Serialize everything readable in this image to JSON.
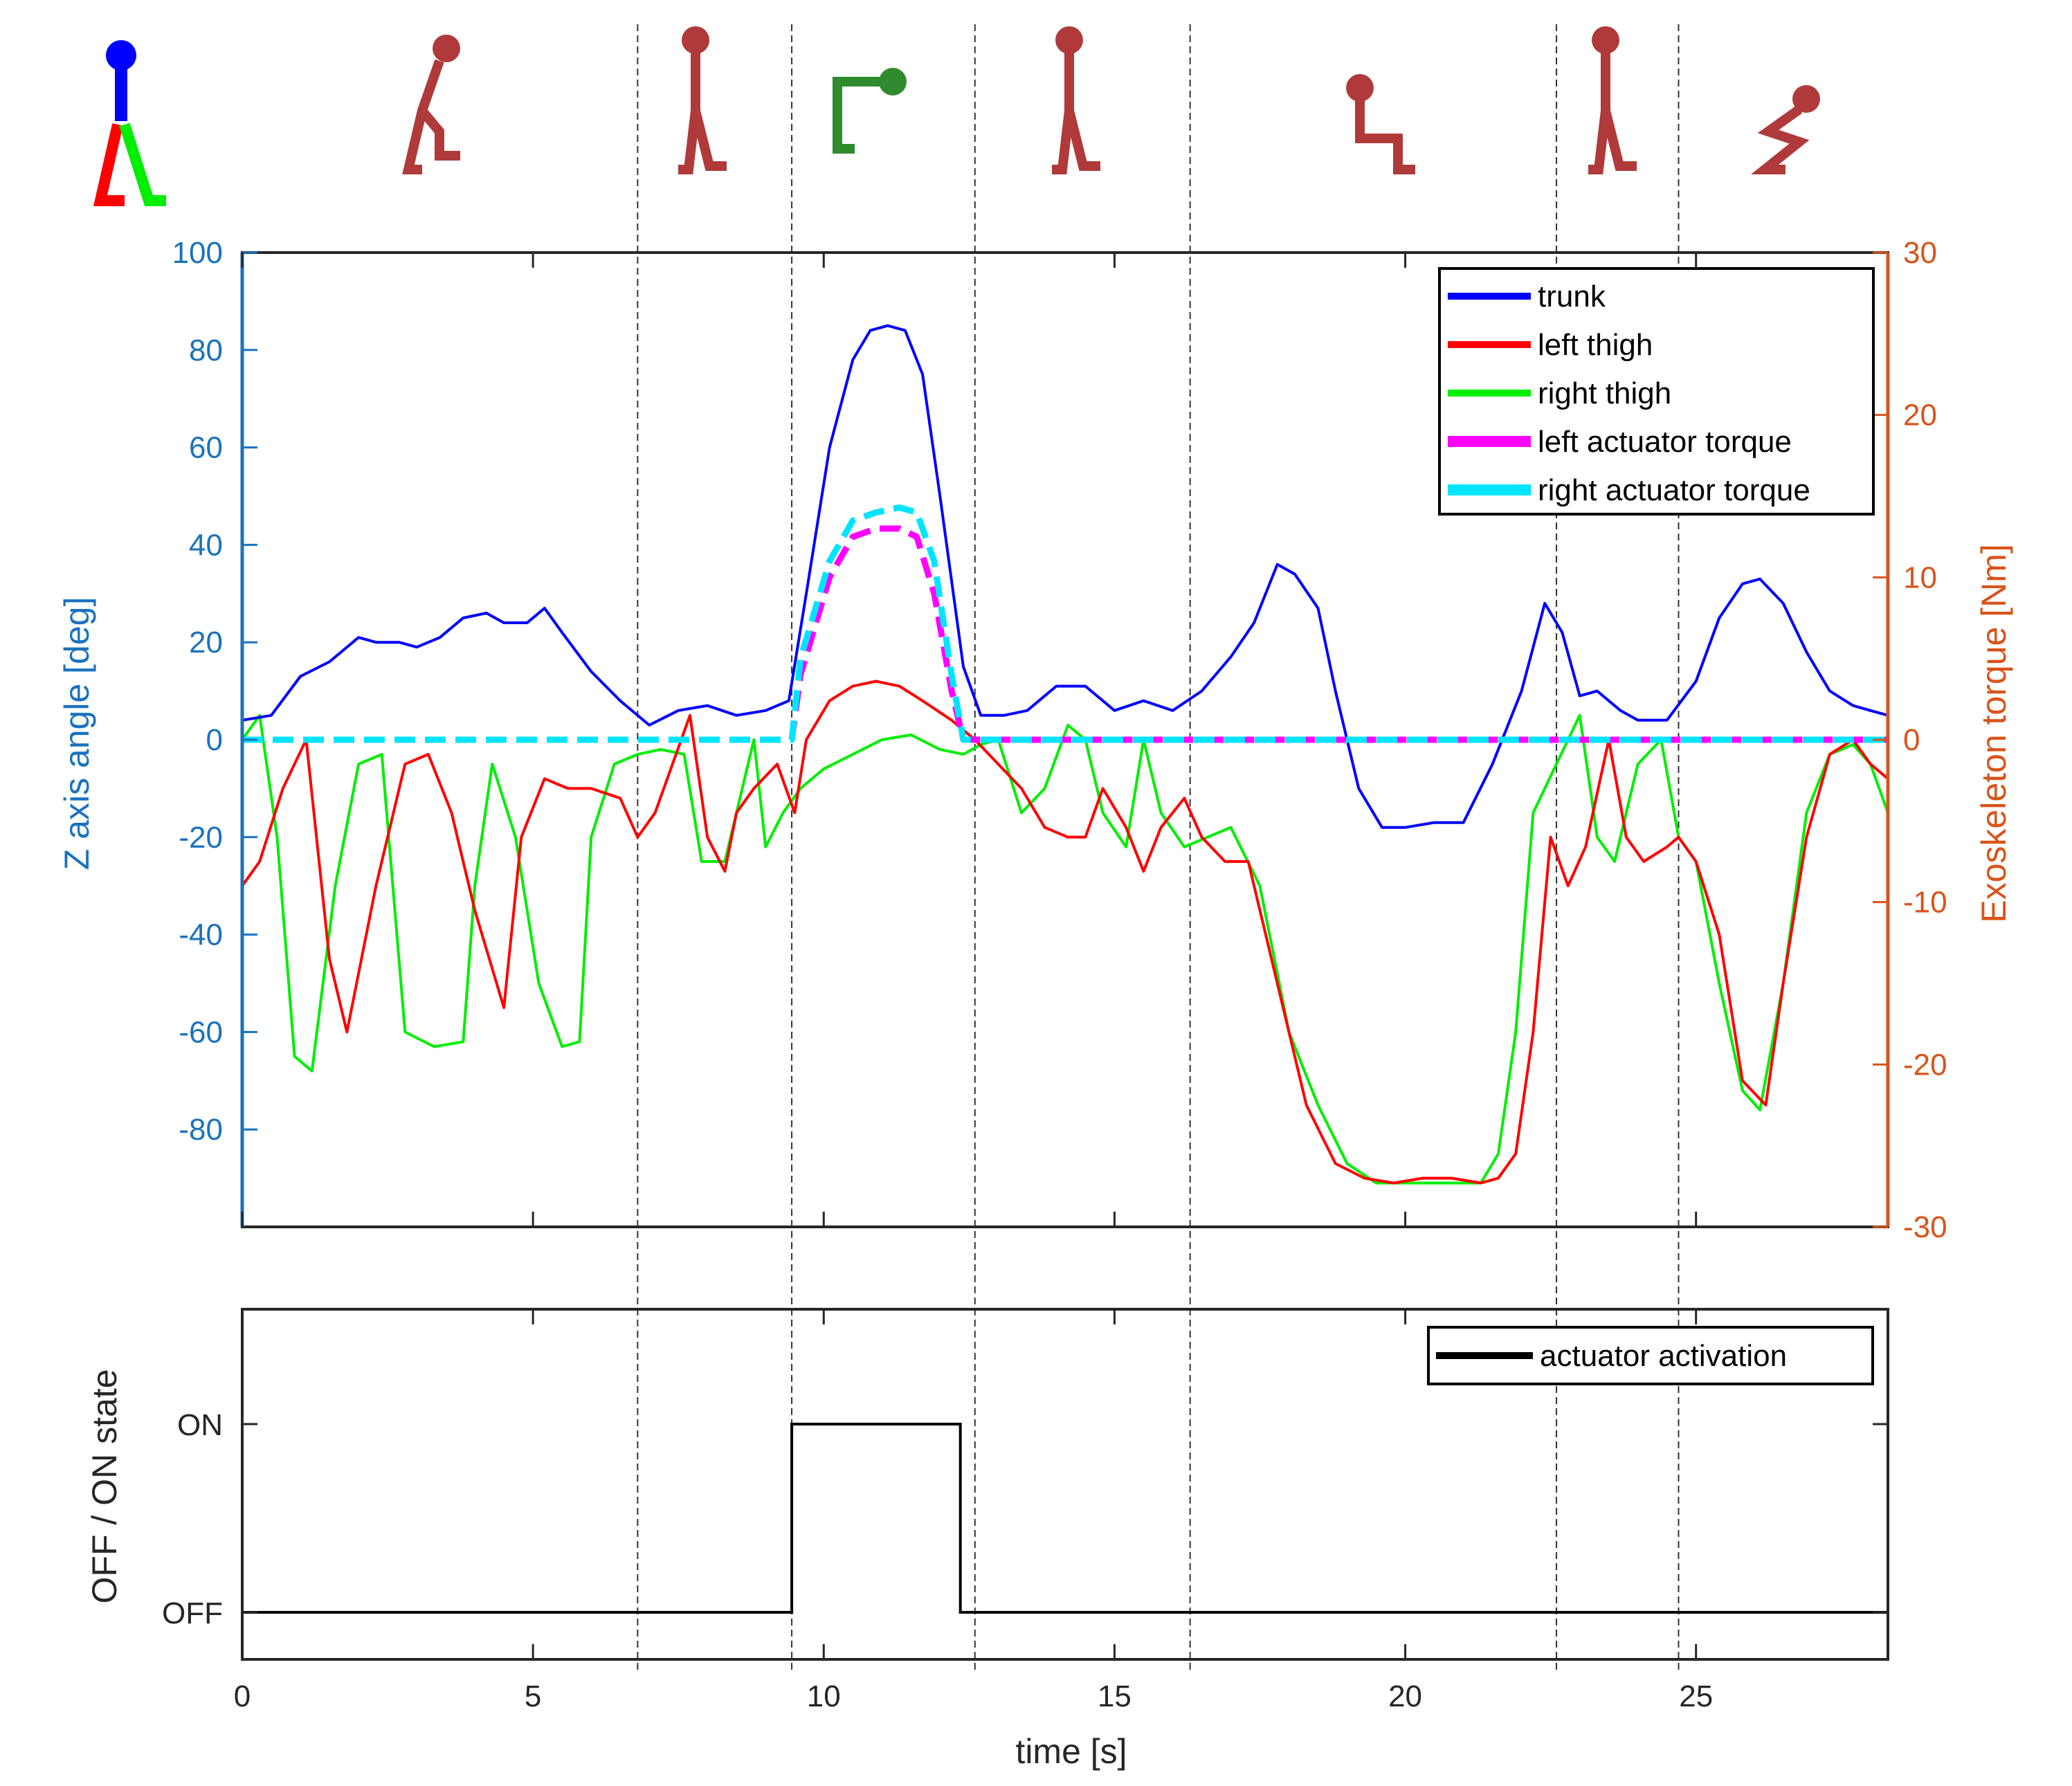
{
  "colors": {
    "trunk": "#0000ff",
    "left_thigh": "#ff0000",
    "right_thigh": "#00ee00",
    "left_torque": "#ff00ff",
    "right_torque": "#00e5ff",
    "activation": "#000000",
    "left_axis": "#1a72bd",
    "right_axis": "#d95319",
    "figure_active": "#2e8b2e",
    "figure_inactive": "#b03a3a"
  },
  "icons": [
    {
      "name": "body-axes-icon"
    },
    {
      "name": "sit-to-stand-icon"
    },
    {
      "name": "standing-icon"
    },
    {
      "name": "bending-forward-icon"
    },
    {
      "name": "standing-icon"
    },
    {
      "name": "sitting-icon"
    },
    {
      "name": "standing-icon"
    },
    {
      "name": "stand-to-sit-icon"
    }
  ],
  "chart_data": [
    {
      "type": "line",
      "xlim": [
        0,
        28.3
      ],
      "ylim": [
        -100,
        100
      ],
      "y2lim": [
        -30,
        30
      ],
      "ylabel": "Z axis angle [deg]",
      "y2label": "Exoskeleton torque [Nm]",
      "yticks": [
        "100",
        "80",
        "60",
        "40",
        "20",
        "0",
        "-20",
        "-40",
        "-60",
        "-80"
      ],
      "y2ticks": [
        "30",
        "20",
        "10",
        "0",
        "-10",
        "-20",
        "-30"
      ],
      "phase_boundaries": [
        6.8,
        9.45,
        12.6,
        16.3,
        22.6,
        24.7
      ],
      "legend_position": "top-right",
      "series": [
        {
          "name": "trunk",
          "axis": "left",
          "style": "solid",
          "x": [
            0,
            0.5,
            1,
            1.5,
            2,
            2.3,
            2.7,
            3,
            3.4,
            3.8,
            4.2,
            4.5,
            4.9,
            5.2,
            5.5,
            6,
            6.5,
            7,
            7.5,
            8,
            8.5,
            9,
            9.4,
            9.7,
            10.1,
            10.5,
            10.8,
            11.1,
            11.4,
            11.7,
            12,
            12.4,
            12.7,
            13.1,
            13.5,
            14,
            14.5,
            15,
            15.5,
            16,
            16.5,
            17,
            17.4,
            17.8,
            18.1,
            18.5,
            18.8,
            19.2,
            19.6,
            20,
            20.5,
            21,
            21.5,
            22,
            22.4,
            22.7,
            23,
            23.3,
            23.7,
            24,
            24.5,
            25,
            25.4,
            25.8,
            26.1,
            26.5,
            26.9,
            27.3,
            27.7,
            28,
            28.3
          ],
          "y": [
            4,
            5,
            13,
            16,
            21,
            20,
            20,
            19,
            21,
            25,
            26,
            24,
            24,
            27,
            22,
            14,
            8,
            3,
            6,
            7,
            5,
            6,
            8,
            30,
            60,
            78,
            84,
            85,
            84,
            75,
            50,
            15,
            5,
            5,
            6,
            11,
            11,
            6,
            8,
            6,
            10,
            17,
            24,
            36,
            34,
            27,
            10,
            -10,
            -18,
            -18,
            -17,
            -17,
            -5,
            10,
            28,
            22,
            9,
            10,
            6,
            4,
            4,
            12,
            25,
            32,
            33,
            28,
            18,
            10,
            7,
            6,
            5
          ]
        },
        {
          "name": "left thigh",
          "axis": "left",
          "style": "solid",
          "x": [
            0,
            0.3,
            0.7,
            1.1,
            1.5,
            1.8,
            2.3,
            2.8,
            3.2,
            3.6,
            4,
            4.5,
            4.8,
            5.2,
            5.6,
            6,
            6.5,
            6.8,
            7.1,
            7.4,
            7.7,
            8,
            8.3,
            8.5,
            8.8,
            9.2,
            9.5,
            9.7,
            10.1,
            10.5,
            10.9,
            11.3,
            11.7,
            12.2,
            12.6,
            13,
            13.4,
            13.8,
            14.2,
            14.5,
            14.8,
            15.2,
            15.5,
            15.8,
            16.2,
            16.5,
            16.9,
            17.3,
            17.8,
            18.3,
            18.8,
            19.3,
            19.8,
            20.3,
            20.8,
            21.3,
            21.6,
            21.9,
            22.2,
            22.5,
            22.8,
            23.1,
            23.5,
            23.8,
            24.1,
            24.5,
            24.7,
            25,
            25.4,
            25.8,
            26.2,
            26.5,
            26.9,
            27.3,
            27.7,
            28,
            28.3
          ],
          "y": [
            -30,
            -25,
            -10,
            0,
            -45,
            -60,
            -30,
            -5,
            -3,
            -15,
            -35,
            -55,
            -20,
            -8,
            -10,
            -10,
            -12,
            -20,
            -15,
            -5,
            5,
            -20,
            -27,
            -15,
            -10,
            -5,
            -15,
            0,
            8,
            11,
            12,
            11,
            8,
            4,
            0,
            -5,
            -10,
            -18,
            -20,
            -20,
            -10,
            -18,
            -27,
            -18,
            -12,
            -20,
            -25,
            -25,
            -50,
            -75,
            -87,
            -90,
            -91,
            -90,
            -90,
            -91,
            -90,
            -85,
            -60,
            -20,
            -30,
            -22,
            0,
            -20,
            -25,
            -22,
            -20,
            -25,
            -40,
            -70,
            -75,
            -50,
            -20,
            -3,
            0,
            -5,
            -8
          ]
        },
        {
          "name": "right thigh",
          "axis": "left",
          "style": "solid",
          "x": [
            0,
            0.3,
            0.6,
            0.9,
            1.2,
            1.6,
            2,
            2.4,
            2.8,
            3.3,
            3.8,
            4,
            4.3,
            4.7,
            5.1,
            5.5,
            5.8,
            6,
            6.4,
            6.8,
            7.2,
            7.6,
            7.9,
            8.3,
            8.6,
            8.8,
            9,
            9.3,
            9.6,
            10,
            10.5,
            11,
            11.5,
            12,
            12.4,
            12.7,
            13,
            13.4,
            13.8,
            14.2,
            14.5,
            14.8,
            15.2,
            15.5,
            15.8,
            16.2,
            16.6,
            17,
            17.5,
            18,
            18.5,
            19,
            19.5,
            20,
            20.5,
            21,
            21.3,
            21.6,
            21.9,
            22.2,
            22.6,
            23,
            23.3,
            23.6,
            24,
            24.4,
            24.7,
            25,
            25.4,
            25.8,
            26.1,
            26.5,
            26.9,
            27.3,
            27.7,
            28,
            28.3
          ],
          "y": [
            0,
            5,
            -20,
            -65,
            -68,
            -30,
            -5,
            -3,
            -60,
            -63,
            -62,
            -30,
            -5,
            -20,
            -50,
            -63,
            -62,
            -20,
            -5,
            -3,
            -2,
            -3,
            -25,
            -25,
            -10,
            0,
            -22,
            -15,
            -10,
            -6,
            -3,
            0,
            1,
            -2,
            -3,
            -1,
            0,
            -15,
            -10,
            3,
            0,
            -15,
            -22,
            0,
            -15,
            -22,
            -20,
            -18,
            -30,
            -60,
            -75,
            -87,
            -91,
            -91,
            -91,
            -91,
            -91,
            -85,
            -60,
            -15,
            -5,
            5,
            -20,
            -25,
            -5,
            0,
            -20,
            -25,
            -50,
            -72,
            -76,
            -50,
            -15,
            -3,
            -1,
            -5,
            -15
          ]
        },
        {
          "name": "left actuator torque",
          "axis": "right",
          "style": "dashed",
          "x": [
            0,
            9.45,
            9.6,
            10.1,
            10.5,
            10.9,
            11.3,
            11.6,
            11.9,
            12.2,
            12.4,
            12.6,
            28.3
          ],
          "y": [
            0,
            0,
            4,
            10,
            12.5,
            13,
            13,
            12.5,
            9,
            3,
            0,
            0,
            0
          ]
        },
        {
          "name": "right actuator torque",
          "axis": "right",
          "style": "dashed",
          "x": [
            0,
            9.45,
            9.6,
            10.1,
            10.5,
            10.9,
            11.3,
            11.6,
            11.9,
            12.2,
            12.4,
            12.6,
            28.3
          ],
          "y": [
            0,
            0,
            5,
            11,
            13.5,
            14,
            14.3,
            14,
            11,
            4,
            0,
            0,
            0
          ]
        }
      ]
    },
    {
      "type": "line",
      "xlim": [
        0,
        28.3
      ],
      "ylabel": "OFF / ON state",
      "xlabel": "time [s]",
      "yticks": [
        "ON",
        "OFF"
      ],
      "xticks": [
        "0",
        "5",
        "10",
        "15",
        "20",
        "25"
      ],
      "legend_position": "top-right",
      "series": [
        {
          "name": "actuator activation",
          "style": "solid",
          "x": [
            0,
            9.45,
            9.45,
            12.35,
            12.35,
            28.3
          ],
          "y": [
            0,
            0,
            1,
            1,
            0,
            0
          ]
        }
      ]
    }
  ]
}
